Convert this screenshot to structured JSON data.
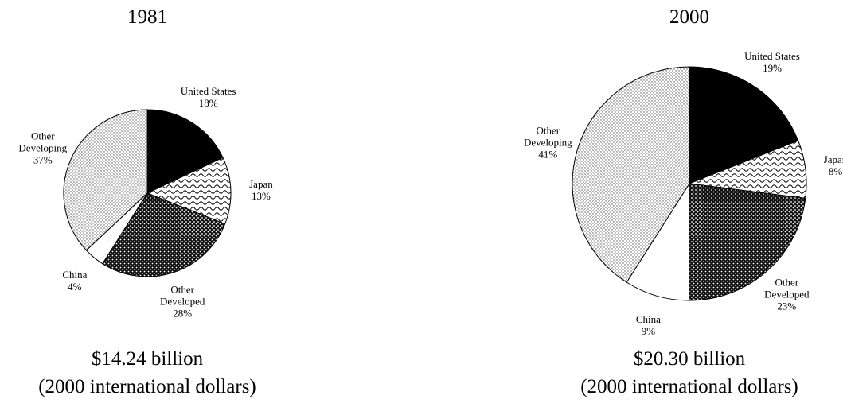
{
  "chart_data": [
    {
      "type": "pie",
      "title": "1981",
      "subtitle": "$14.24 billion",
      "note": "(2000 international dollars)",
      "categories": [
        "United States",
        "Japan",
        "Other Developed",
        "China",
        "Other Developing"
      ],
      "values": [
        18,
        13,
        28,
        4,
        37
      ],
      "value_labels": [
        "18%",
        "13%",
        "28%",
        "4%",
        "37%"
      ]
    },
    {
      "type": "pie",
      "title": "2000",
      "subtitle": "$20.30 billion",
      "note": "(2000 international dollars)",
      "categories": [
        "United States",
        "Japan",
        "Other Developed",
        "China",
        "Other Developing"
      ],
      "values": [
        19,
        8,
        23,
        9,
        41
      ],
      "value_labels": [
        "19%",
        "8%",
        "23%",
        "9%",
        "41%"
      ]
    }
  ]
}
